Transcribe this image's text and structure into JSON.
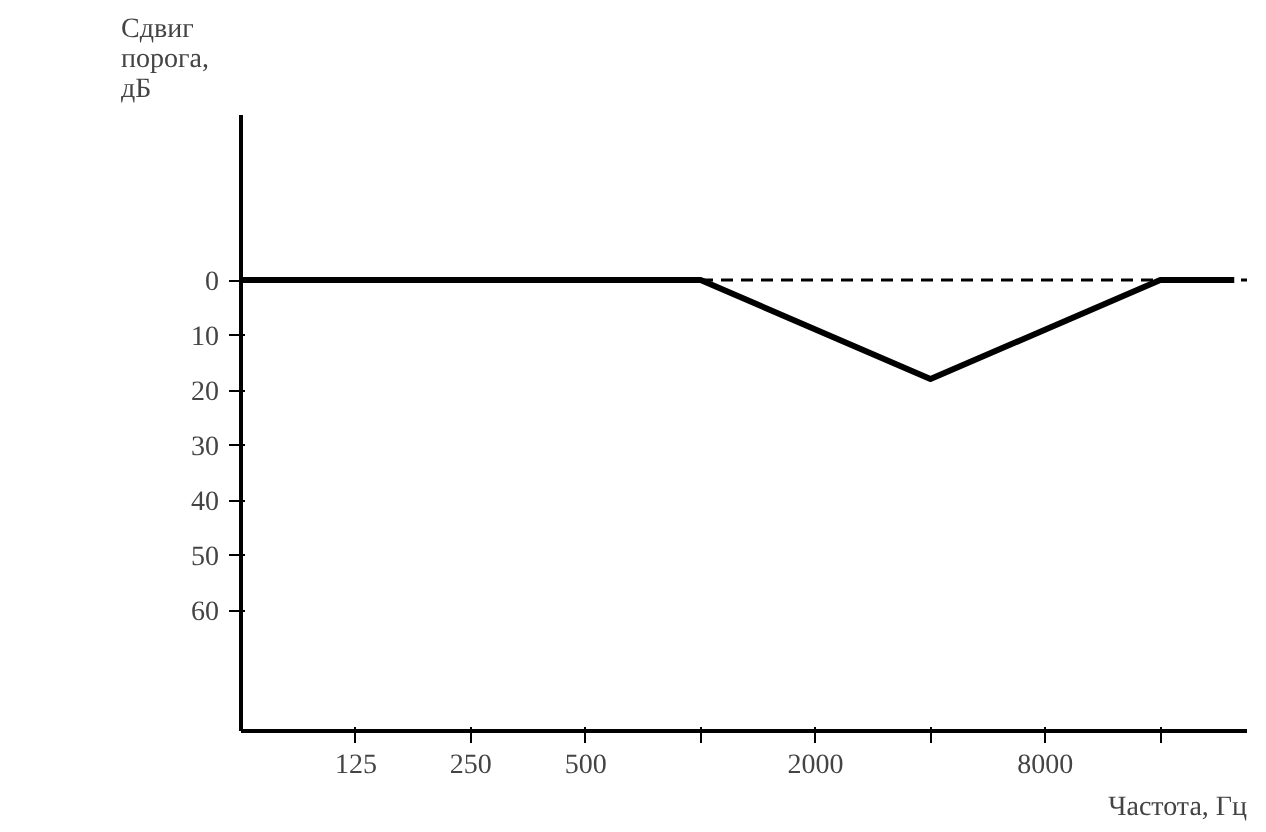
{
  "chart_data": {
    "type": "line",
    "ylabel": "Сдвиг\nпорога,\nдБ",
    "xlabel": "Частота, Гц",
    "x": [
      62.5,
      1000,
      4000,
      16000,
      25000
    ],
    "series": [
      {
        "color": "#000000",
        "values": [
          0,
          0,
          18,
          0,
          0
        ]
      }
    ],
    "log": "x",
    "xlim": [
      62.5,
      27000
    ],
    "xticks": [
      125,
      250,
      500,
      {
        "value": 1000,
        "label": null
      },
      2000,
      {
        "value": 4000,
        "label": null
      },
      8000,
      {
        "value": 16000,
        "label": null
      }
    ],
    "ylim": [
      82,
      -30
    ],
    "yticks": [
      0,
      10,
      20,
      30,
      40,
      50,
      60
    ],
    "ref_lines": [
      {
        "axis": "y",
        "value": 0,
        "color": "#000000",
        "line_style": "dashed"
      }
    ],
    "grid": false,
    "marker": "none",
    "line_style": "solid"
  }
}
